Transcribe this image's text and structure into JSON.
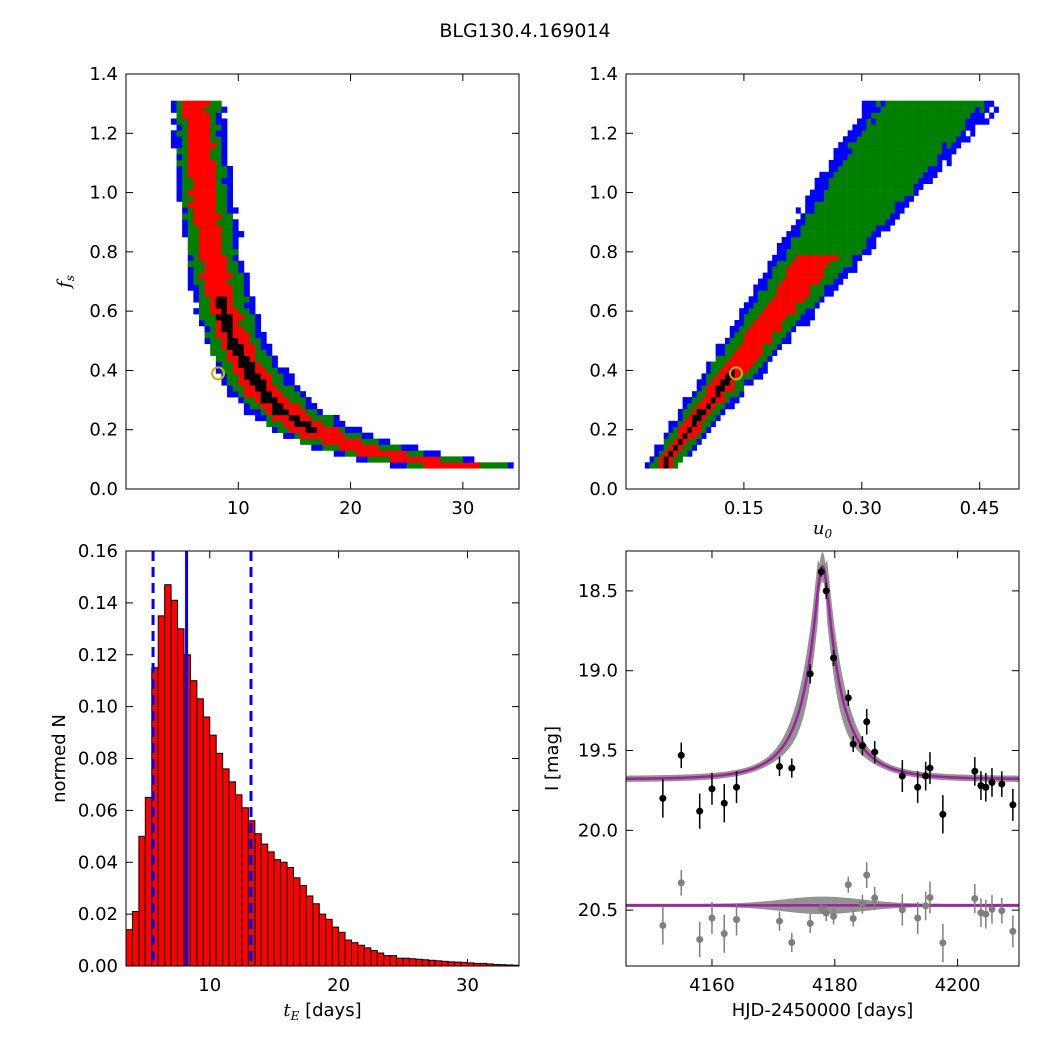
{
  "figure_title": "BLG130.4.169014",
  "chart_data": [
    {
      "type": "heatmap",
      "panel": "tE-fs",
      "xlabel": "",
      "ylabel": "f_s",
      "xlim": [
        0,
        35
      ],
      "ylim": [
        0,
        1.4
      ],
      "xticks": [
        10,
        20,
        30
      ],
      "yticks": [
        0.0,
        0.2,
        0.4,
        0.6,
        0.8,
        1.0,
        1.2,
        1.4
      ],
      "xtick_labels": [
        "10",
        "20",
        "30"
      ],
      "ytick_labels": [
        "0.0",
        "0.2",
        "0.4",
        "0.6",
        "0.8",
        "1.0",
        "1.2",
        "1.4"
      ],
      "confidence_colors": [
        "#0000ff",
        "#007f00",
        "#ff0000",
        "#000000"
      ],
      "best_fit": {
        "x": 8.2,
        "y": 0.39
      },
      "marker_color": "#c8b400"
    },
    {
      "type": "heatmap",
      "panel": "u0-fs",
      "xlabel": "u_0",
      "ylabel": "",
      "xlim": [
        0.0,
        0.5
      ],
      "ylim": [
        0,
        1.4
      ],
      "xticks": [
        0.15,
        0.3,
        0.45
      ],
      "yticks": [
        0.0,
        0.2,
        0.4,
        0.6,
        0.8,
        1.0,
        1.2,
        1.4
      ],
      "xtick_labels": [
        "0.15",
        "0.30",
        "0.45"
      ],
      "ytick_labels": [
        "0.0",
        "0.2",
        "0.4",
        "0.6",
        "0.8",
        "1.0",
        "1.2",
        "1.4"
      ],
      "confidence_colors": [
        "#0000ff",
        "#007f00",
        "#ff0000",
        "#000000"
      ],
      "best_fit": {
        "x": 0.14,
        "y": 0.39
      },
      "marker_color": "#c8b400"
    },
    {
      "type": "bar",
      "panel": "tE-histogram",
      "xlabel": "t_E [days]",
      "ylabel": "normed N",
      "xlim": [
        3.5,
        34
      ],
      "ylim": [
        0,
        0.16
      ],
      "xticks": [
        10,
        20,
        30
      ],
      "yticks": [
        0.0,
        0.02,
        0.04,
        0.06,
        0.08,
        0.1,
        0.12,
        0.14,
        0.16
      ],
      "xtick_labels": [
        "10",
        "20",
        "30"
      ],
      "ytick_labels": [
        "0.00",
        "0.02",
        "0.04",
        "0.06",
        "0.08",
        "0.10",
        "0.12",
        "0.14",
        "0.16"
      ],
      "bin_start": 3.5,
      "bin_width": 0.5,
      "values": [
        0.014,
        0.021,
        0.05,
        0.065,
        0.115,
        0.135,
        0.147,
        0.141,
        0.13,
        0.12,
        0.11,
        0.103,
        0.096,
        0.089,
        0.082,
        0.076,
        0.071,
        0.066,
        0.061,
        0.056,
        0.051,
        0.047,
        0.044,
        0.041,
        0.04,
        0.038,
        0.034,
        0.031,
        0.027,
        0.024,
        0.02,
        0.018,
        0.015,
        0.013,
        0.01,
        0.009,
        0.008,
        0.007,
        0.006,
        0.005,
        0.004,
        0.004,
        0.003,
        0.003,
        0.0028,
        0.0026,
        0.0024,
        0.0022,
        0.002,
        0.0018,
        0.0016,
        0.0015,
        0.0014,
        0.0012,
        0.001,
        0.001,
        0.0008,
        0.0006,
        0.0005,
        0.0004,
        0.0003
      ],
      "bar_color": "#ff0000",
      "median": 8.2,
      "lower": 5.6,
      "upper": 13.2,
      "line_color": "#0000ff"
    },
    {
      "type": "scatter",
      "panel": "light-curve",
      "xlabel": "HJD-2450000 [days]",
      "ylabel": "I [mag]",
      "xlim": [
        4146,
        4210
      ],
      "ylim": [
        20.85,
        18.25
      ],
      "xticks": [
        4160,
        4180,
        4200
      ],
      "yticks": [
        18.5,
        19.0,
        19.5,
        20.0,
        20.5
      ],
      "xtick_labels": [
        "4160",
        "4180",
        "4200"
      ],
      "ytick_labels": [
        "18.5",
        "19.0",
        "19.5",
        "20.0",
        "20.5"
      ],
      "model": {
        "t0": 4178.0,
        "tE": 8.2,
        "u0": 0.14,
        "fs": 0.39,
        "baseline": 19.68
      },
      "residual_offset": 20.47,
      "data": [
        {
          "t": 4152.0,
          "mag": 19.8,
          "err": 0.12
        },
        {
          "t": 4155.0,
          "mag": 19.53,
          "err": 0.08
        },
        {
          "t": 4158.0,
          "mag": 19.88,
          "err": 0.11
        },
        {
          "t": 4160.0,
          "mag": 19.74,
          "err": 0.1
        },
        {
          "t": 4162.0,
          "mag": 19.83,
          "err": 0.12
        },
        {
          "t": 4164.0,
          "mag": 19.73,
          "err": 0.1
        },
        {
          "t": 4171.0,
          "mag": 19.6,
          "err": 0.06
        },
        {
          "t": 4173.0,
          "mag": 19.61,
          "err": 0.06
        },
        {
          "t": 4176.0,
          "mag": 19.02,
          "err": 0.06
        },
        {
          "t": 4177.8,
          "mag": 18.38,
          "err": 0.03
        },
        {
          "t": 4178.6,
          "mag": 18.5,
          "err": 0.05
        },
        {
          "t": 4179.8,
          "mag": 18.92,
          "err": 0.05
        },
        {
          "t": 4182.2,
          "mag": 19.17,
          "err": 0.05
        },
        {
          "t": 4183.0,
          "mag": 19.46,
          "err": 0.05
        },
        {
          "t": 4184.5,
          "mag": 19.47,
          "err": 0.06
        },
        {
          "t": 4185.2,
          "mag": 19.32,
          "err": 0.08
        },
        {
          "t": 4186.5,
          "mag": 19.51,
          "err": 0.07
        },
        {
          "t": 4191.0,
          "mag": 19.66,
          "err": 0.1
        },
        {
          "t": 4193.5,
          "mag": 19.73,
          "err": 0.1
        },
        {
          "t": 4194.8,
          "mag": 19.66,
          "err": 0.09
        },
        {
          "t": 4195.5,
          "mag": 19.61,
          "err": 0.1
        },
        {
          "t": 4197.6,
          "mag": 19.9,
          "err": 0.12
        },
        {
          "t": 4202.8,
          "mag": 19.63,
          "err": 0.09
        },
        {
          "t": 4203.8,
          "mag": 19.72,
          "err": 0.09
        },
        {
          "t": 4204.6,
          "mag": 19.73,
          "err": 0.09
        },
        {
          "t": 4205.6,
          "mag": 19.7,
          "err": 0.09
        },
        {
          "t": 4207.2,
          "mag": 19.71,
          "err": 0.08
        },
        {
          "t": 4209.0,
          "mag": 19.84,
          "err": 0.1
        }
      ],
      "data_color": "#000000",
      "residual_color": "#7f7f7f",
      "model_color": "#a020a0",
      "band_color": "#808080"
    }
  ]
}
